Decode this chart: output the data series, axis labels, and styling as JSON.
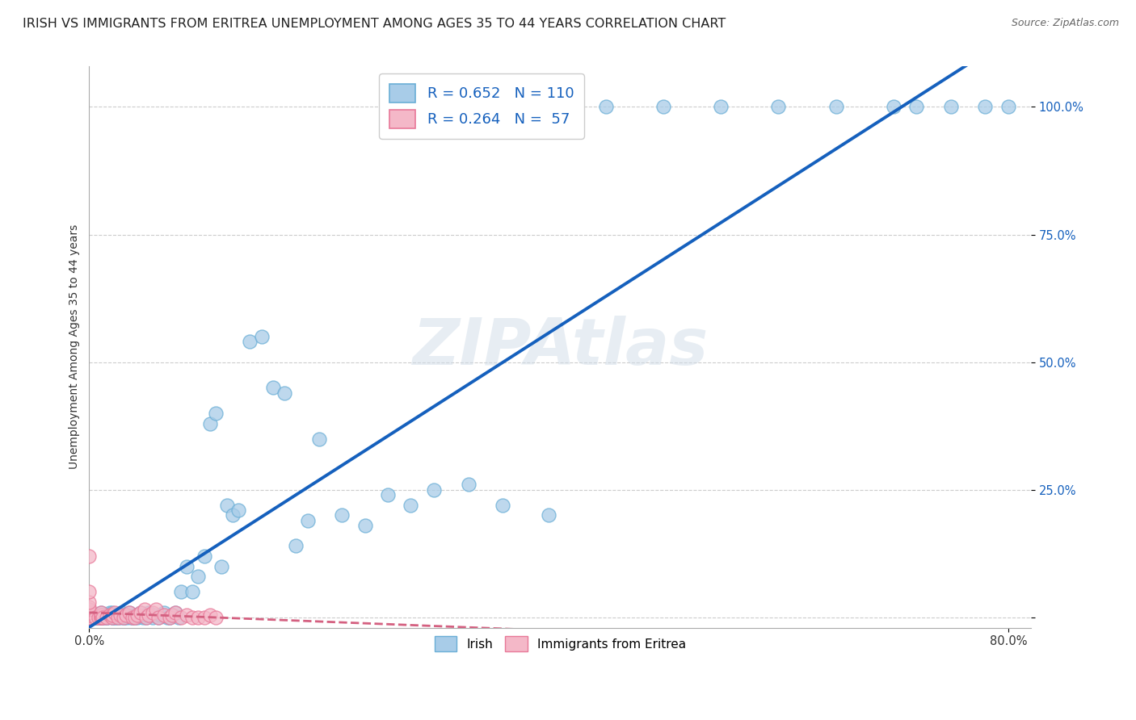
{
  "title": "IRISH VS IMMIGRANTS FROM ERITREA UNEMPLOYMENT AMONG AGES 35 TO 44 YEARS CORRELATION CHART",
  "source": "Source: ZipAtlas.com",
  "ylabel": "Unemployment Among Ages 35 to 44 years",
  "xlim": [
    0.0,
    0.82
  ],
  "ylim": [
    -0.02,
    1.08
  ],
  "xticks": [
    0.0,
    0.8
  ],
  "xtick_labels": [
    "0.0%",
    "80.0%"
  ],
  "yticks": [
    0.0,
    0.25,
    0.5,
    0.75,
    1.0
  ],
  "ytick_labels": [
    "",
    "25.0%",
    "50.0%",
    "75.0%",
    "100.0%"
  ],
  "watermark": "ZIPAtlas",
  "irish_color": "#a8cce8",
  "irish_edge": "#6aaed6",
  "eritrea_color": "#f4b8c8",
  "eritrea_edge": "#e87898",
  "trend_blue": "#1560bd",
  "trend_pink": "#d46080",
  "background_color": "#ffffff",
  "grid_color": "#cccccc",
  "title_fontsize": 11.5,
  "label_fontsize": 10,
  "tick_fontsize": 10.5,
  "legend_fontsize": 13,
  "source_fontsize": 9,
  "irish_x": [
    0.0,
    0.0,
    0.0,
    0.0,
    0.0,
    0.0,
    0.0,
    0.0,
    0.0,
    0.0,
    0.0,
    0.0,
    0.0,
    0.0,
    0.0,
    0.0,
    0.0,
    0.0,
    0.0,
    0.0,
    0.005,
    0.005,
    0.005,
    0.007,
    0.008,
    0.01,
    0.01,
    0.01,
    0.01,
    0.01,
    0.01,
    0.012,
    0.013,
    0.015,
    0.015,
    0.016,
    0.017,
    0.018,
    0.02,
    0.02,
    0.02,
    0.02,
    0.022,
    0.023,
    0.025,
    0.025,
    0.027,
    0.028,
    0.03,
    0.03,
    0.031,
    0.032,
    0.033,
    0.035,
    0.036,
    0.038,
    0.04,
    0.04,
    0.042,
    0.045,
    0.047,
    0.05,
    0.05,
    0.052,
    0.055,
    0.057,
    0.06,
    0.062,
    0.065,
    0.068,
    0.07,
    0.072,
    0.075,
    0.078,
    0.08,
    0.085,
    0.09,
    0.095,
    0.1,
    0.105,
    0.11,
    0.115,
    0.12,
    0.125,
    0.13,
    0.14,
    0.15,
    0.16,
    0.17,
    0.18,
    0.19,
    0.2,
    0.22,
    0.24,
    0.26,
    0.28,
    0.3,
    0.33,
    0.36,
    0.4,
    0.45,
    0.5,
    0.55,
    0.6,
    0.65,
    0.7,
    0.72,
    0.75,
    0.78,
    0.8
  ],
  "irish_y": [
    0.0,
    0.0,
    0.0,
    0.0,
    0.0,
    0.0,
    0.0,
    0.0,
    0.0,
    0.0,
    0.0,
    0.0,
    0.0,
    0.0,
    0.0,
    0.005,
    0.008,
    0.01,
    0.012,
    0.015,
    0.0,
    0.0,
    0.005,
    0.0,
    0.0,
    0.0,
    0.0,
    0.0,
    0.0,
    0.005,
    0.01,
    0.0,
    0.0,
    0.0,
    0.005,
    0.0,
    0.005,
    0.01,
    0.0,
    0.0,
    0.005,
    0.01,
    0.0,
    0.0,
    0.0,
    0.005,
    0.0,
    0.01,
    0.0,
    0.005,
    0.0,
    0.005,
    0.0,
    0.01,
    0.0,
    0.0,
    0.0,
    0.005,
    0.0,
    0.01,
    0.0,
    0.0,
    0.005,
    0.01,
    0.0,
    0.005,
    0.0,
    0.005,
    0.01,
    0.0,
    0.0,
    0.005,
    0.01,
    0.0,
    0.05,
    0.1,
    0.05,
    0.08,
    0.12,
    0.38,
    0.4,
    0.1,
    0.22,
    0.2,
    0.21,
    0.54,
    0.55,
    0.45,
    0.44,
    0.14,
    0.19,
    0.35,
    0.2,
    0.18,
    0.24,
    0.22,
    0.25,
    0.26,
    0.22,
    0.2,
    1.0,
    1.0,
    1.0,
    1.0,
    1.0,
    1.0,
    1.0,
    1.0,
    1.0,
    1.0
  ],
  "eritrea_x": [
    0.0,
    0.0,
    0.0,
    0.0,
    0.0,
    0.0,
    0.0,
    0.0,
    0.0,
    0.0,
    0.0,
    0.0,
    0.0,
    0.0,
    0.0,
    0.0,
    0.0,
    0.0,
    0.0,
    0.005,
    0.008,
    0.01,
    0.01,
    0.01,
    0.01,
    0.012,
    0.015,
    0.018,
    0.02,
    0.02,
    0.022,
    0.025,
    0.027,
    0.03,
    0.032,
    0.035,
    0.038,
    0.04,
    0.042,
    0.045,
    0.048,
    0.05,
    0.052,
    0.055,
    0.058,
    0.06,
    0.065,
    0.07,
    0.072,
    0.075,
    0.08,
    0.085,
    0.09,
    0.095,
    0.1,
    0.105,
    0.11
  ],
  "eritrea_y": [
    0.0,
    0.0,
    0.0,
    0.0,
    0.0,
    0.0,
    0.0,
    0.0,
    0.0,
    0.0,
    0.0,
    0.0,
    0.005,
    0.01,
    0.015,
    0.02,
    0.03,
    0.05,
    0.12,
    0.0,
    0.0,
    0.0,
    0.0,
    0.005,
    0.01,
    0.0,
    0.0,
    0.005,
    0.0,
    0.005,
    0.01,
    0.0,
    0.005,
    0.0,
    0.005,
    0.01,
    0.0,
    0.0,
    0.005,
    0.01,
    0.015,
    0.0,
    0.005,
    0.01,
    0.015,
    0.0,
    0.005,
    0.0,
    0.005,
    0.01,
    0.0,
    0.005,
    0.0,
    0.0,
    0.0,
    0.005,
    0.0
  ]
}
